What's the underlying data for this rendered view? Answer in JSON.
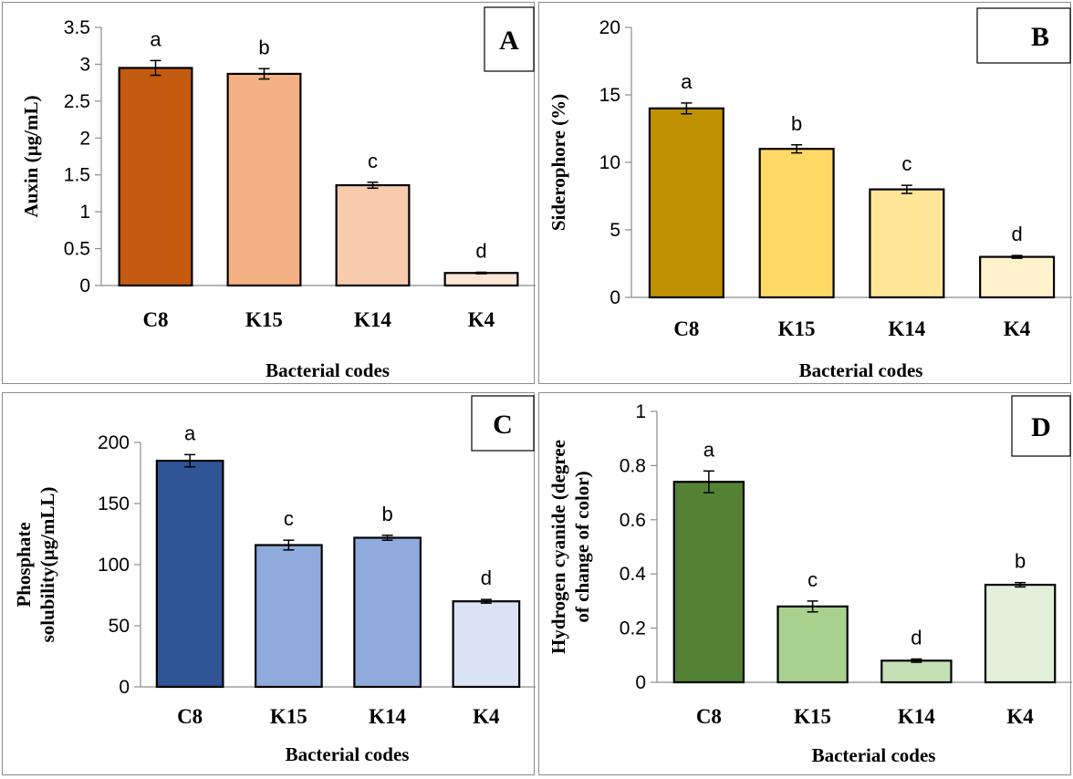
{
  "chart_data": [
    {
      "type": "bar",
      "panel_label": "A",
      "title": "",
      "xlabel": "Bacterial codes",
      "ylabel": "Auxin (µg/mL)",
      "categories": [
        "C8",
        "K15",
        "K14",
        "K4"
      ],
      "values": [
        2.95,
        2.87,
        1.36,
        0.17
      ],
      "errors": [
        0.1,
        0.07,
        0.04,
        0.01
      ],
      "significance": [
        "a",
        "b",
        "c",
        "d"
      ],
      "colors": [
        "#c55a11",
        "#f4b183",
        "#f8cbad",
        "#fbe5d6"
      ],
      "ylim": [
        0,
        3.5
      ],
      "yticks": [
        "0",
        "0.5",
        "1",
        "1.5",
        "2",
        "2.5",
        "3",
        "3.5"
      ],
      "grid": false,
      "legend": "none"
    },
    {
      "type": "bar",
      "panel_label": "B",
      "title": "",
      "xlabel": "Bacterial codes",
      "ylabel": "Siderophore (%)",
      "categories": [
        "C8",
        "K15",
        "K14",
        "K4"
      ],
      "values": [
        14.0,
        11.0,
        8.0,
        3.0
      ],
      "errors": [
        0.4,
        0.3,
        0.3,
        0.1
      ],
      "significance": [
        "a",
        "b",
        "c",
        "d"
      ],
      "colors": [
        "#bf9000",
        "#ffd966",
        "#ffe699",
        "#fff2cc"
      ],
      "ylim": [
        0,
        20
      ],
      "yticks": [
        "0",
        "5",
        "10",
        "15",
        "20"
      ],
      "grid": false,
      "legend": "none"
    },
    {
      "type": "bar",
      "panel_label": "C",
      "title": "",
      "xlabel": "Bacterial codes",
      "ylabel": "Phosphate solubility(µg/mLL)",
      "ylabel_lines": [
        "Phosphate",
        "solubility(µg/mLL)"
      ],
      "categories": [
        "C8",
        "K15",
        "K14",
        "K4"
      ],
      "values": [
        185,
        116,
        122,
        70
      ],
      "errors": [
        5,
        4,
        2,
        1.5
      ],
      "significance": [
        "a",
        "c",
        "b",
        "d"
      ],
      "colors": [
        "#2f5597",
        "#8faadc",
        "#8faadc",
        "#dae3f3"
      ],
      "ylim": [
        0,
        200
      ],
      "yticks": [
        "0",
        "50",
        "100",
        "150",
        "200"
      ],
      "grid": false,
      "legend": "none"
    },
    {
      "type": "bar",
      "panel_label": "D",
      "title": "",
      "xlabel": "Bacterial codes",
      "ylabel": "Hydrogen cyanide (degree of change of color)",
      "ylabel_lines": [
        "Hydrogen cyanide (degree",
        "of change of color)"
      ],
      "categories": [
        "C8",
        "K15",
        "K14",
        "K4"
      ],
      "values": [
        0.74,
        0.28,
        0.08,
        0.36
      ],
      "errors": [
        0.04,
        0.02,
        0.006,
        0.008
      ],
      "significance": [
        "a",
        "c",
        "d",
        "b"
      ],
      "colors": [
        "#548235",
        "#a9d18e",
        "#c5e0b4",
        "#e2f0d9"
      ],
      "ylim": [
        0,
        1
      ],
      "yticks": [
        "0",
        "0.2",
        "0.4",
        "0.6",
        "0.8",
        "1"
      ],
      "grid": false,
      "legend": "none"
    }
  ]
}
